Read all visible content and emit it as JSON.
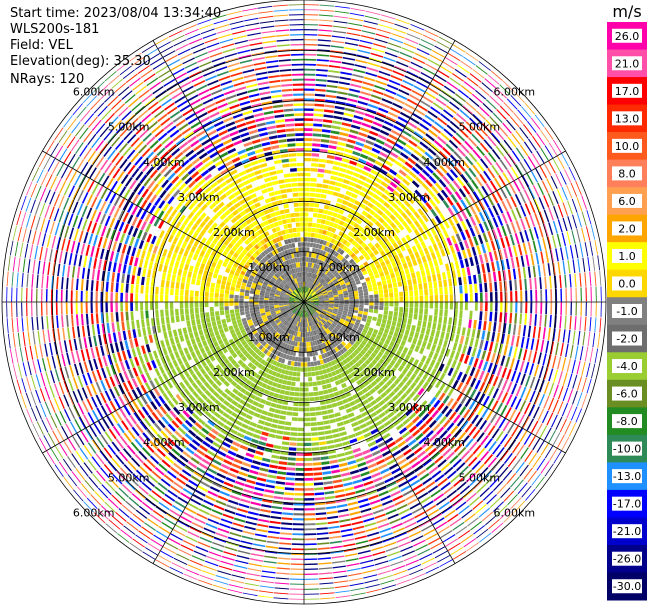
{
  "header": {
    "start_time": "Start time: 2023/08/04 13:34:40",
    "instrument": "WLS200s-181",
    "field": "Field: VEL",
    "elevation": "Elevation(deg): 35.30",
    "nrays": "NRays: 120"
  },
  "chart_data": {
    "type": "heatmap",
    "projection": "polar",
    "field": "VEL",
    "units": "m/s",
    "n_rays": 120,
    "elevation_deg": 35.3,
    "range_rings_km": [
      1.0,
      2.0,
      3.0,
      4.0,
      5.0,
      6.0
    ],
    "range_ring_labels": [
      "1.00km",
      "2.00km",
      "3.00km",
      "4.00km",
      "5.00km",
      "6.00km"
    ],
    "max_range_km": 6.0,
    "gate_spacing_km": 0.1,
    "colorbar": {
      "label": "m/s",
      "tick_labels": [
        "26.0",
        "21.0",
        "17.0",
        "13.0",
        "10.0",
        "8.0",
        "6.0",
        "2.0",
        "1.0",
        "0.0",
        "-1.0",
        "-2.0",
        "-4.0",
        "-6.0",
        "-8.0",
        "-10.0",
        "-13.0",
        "-17.0",
        "-21.0",
        "-26.0",
        "-30.0"
      ],
      "bins": [
        {
          "low": 26.0,
          "high": 30.0,
          "color": "#ff00aa"
        },
        {
          "low": 21.0,
          "high": 26.0,
          "color": "#ff4fa8"
        },
        {
          "low": 17.0,
          "high": 21.0,
          "color": "#ff0000"
        },
        {
          "low": 13.0,
          "high": 17.0,
          "color": "#ff2a00"
        },
        {
          "low": 10.0,
          "high": 13.0,
          "color": "#ff5a1e"
        },
        {
          "low": 8.0,
          "high": 10.0,
          "color": "#ff7f5a"
        },
        {
          "low": 6.0,
          "high": 8.0,
          "color": "#ffa050"
        },
        {
          "low": 2.0,
          "high": 6.0,
          "color": "#ffa500"
        },
        {
          "low": 1.0,
          "high": 2.0,
          "color": "#ffff00"
        },
        {
          "low": 0.0,
          "high": 1.0,
          "color": "#ffd700"
        },
        {
          "low": -1.0,
          "high": 0.0,
          "color": "#808080"
        },
        {
          "low": -2.0,
          "high": -1.0,
          "color": "#6e6e6e"
        },
        {
          "low": -4.0,
          "high": -2.0,
          "color": "#9acd32"
        },
        {
          "low": -6.0,
          "high": -4.0,
          "color": "#6b8e23"
        },
        {
          "low": -8.0,
          "high": -6.0,
          "color": "#228b22"
        },
        {
          "low": -10.0,
          "high": -8.0,
          "color": "#2e8b57"
        },
        {
          "low": -13.0,
          "high": -10.0,
          "color": "#1e90ff"
        },
        {
          "low": -17.0,
          "high": -13.0,
          "color": "#0000ff"
        },
        {
          "low": -21.0,
          "high": -17.0,
          "color": "#0000cd"
        },
        {
          "low": -26.0,
          "high": -21.0,
          "color": "#00008b"
        },
        {
          "low": -30.0,
          "high": -26.0,
          "color": "#000066"
        }
      ]
    },
    "structure": {
      "inner_core_km": [
        0.0,
        0.4
      ],
      "positive_sector_bearing_deg": [
        270,
        90
      ],
      "negative_sector_bearing_deg": [
        90,
        270
      ],
      "coherent_signal_to_km": [
        2.5,
        3.5
      ],
      "noise_beyond_km": 3.6
    }
  }
}
